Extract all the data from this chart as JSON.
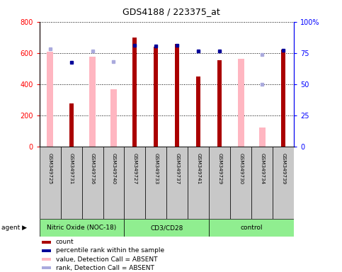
{
  "title": "GDS4188 / 223375_at",
  "samples": [
    "GSM349725",
    "GSM349731",
    "GSM349736",
    "GSM349740",
    "GSM349727",
    "GSM349733",
    "GSM349737",
    "GSM349741",
    "GSM349729",
    "GSM349730",
    "GSM349734",
    "GSM349739"
  ],
  "groups": [
    {
      "label": "Nitric Oxide (NOC-18)",
      "start": 0,
      "end": 4
    },
    {
      "label": "CD3/CD28",
      "start": 4,
      "end": 8
    },
    {
      "label": "control",
      "start": 8,
      "end": 12
    }
  ],
  "count_values": [
    null,
    280,
    null,
    null,
    700,
    640,
    660,
    450,
    555,
    null,
    null,
    620
  ],
  "absent_value_bars": [
    610,
    null,
    575,
    370,
    null,
    null,
    null,
    null,
    null,
    565,
    125,
    null
  ],
  "percentile_rank_vals": [
    null,
    540,
    null,
    null,
    650,
    643,
    648,
    612,
    612,
    null,
    null,
    618
  ],
  "absent_rank_vals": [
    625,
    null,
    615,
    545,
    null,
    null,
    null,
    null,
    null,
    null,
    590,
    null
  ],
  "absent_rank2_vals": [
    null,
    null,
    null,
    null,
    null,
    null,
    null,
    null,
    null,
    null,
    398,
    null
  ],
  "ylim": [
    0,
    800
  ],
  "y2lim": [
    0,
    100
  ],
  "yticks": [
    0,
    200,
    400,
    600,
    800
  ],
  "ytick_labels": [
    "0",
    "200",
    "400",
    "600",
    "800"
  ],
  "y2ticks": [
    0,
    25,
    50,
    75,
    100
  ],
  "y2tick_labels": [
    "0",
    "25",
    "50",
    "75",
    "100%"
  ],
  "count_color": "#AA0000",
  "absent_bar_color": "#FFB6C1",
  "percentile_color": "#000099",
  "absent_rank_color": "#AAAADD",
  "green_color": "#90EE90",
  "gray_color": "#C8C8C8"
}
